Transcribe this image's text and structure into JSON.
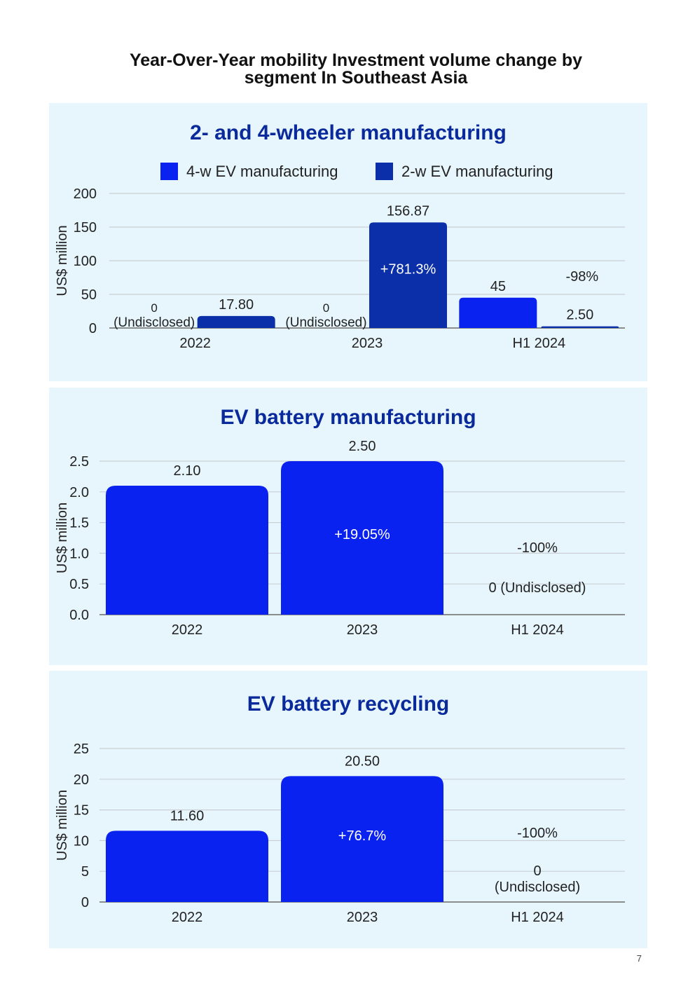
{
  "page": {
    "title_line1": "Year-Over-Year mobility Investment volume change by",
    "title_line2": "segment In Southeast Asia",
    "page_number": "7"
  },
  "colors": {
    "panel_bg": "#e7f6fd",
    "bar_bright": "#0a22f0",
    "bar_dark": "#0a2fa8",
    "title_blue": "#0a2a9c",
    "gridline": "#c9cfd4",
    "axis": "#6a6a6a"
  },
  "chart_data": [
    {
      "type": "bar",
      "title": "2- and 4-wheeler manufacturing",
      "ylabel": "US$ million",
      "xlabel": "",
      "ylim": [
        0,
        200
      ],
      "yticks": [
        "0",
        "50",
        "100",
        "150",
        "200"
      ],
      "categories": [
        "2022",
        "2023",
        "H1 2024"
      ],
      "legend_position": "top",
      "series": [
        {
          "name": "4-w EV manufacturing",
          "color": "#0a22f0",
          "values": [
            0,
            0,
            45
          ],
          "labels": [
            "0",
            "0",
            "45"
          ],
          "sublabels": [
            "(Undisclosed)",
            "(Undisclosed)",
            ""
          ]
        },
        {
          "name": "2-w EV manufacturing",
          "color": "#0a2fa8",
          "values": [
            17.8,
            156.87,
            2.5
          ],
          "labels": [
            "17.80",
            "156.87",
            "2.50"
          ]
        }
      ],
      "annotations": [
        {
          "text": "+781.3%",
          "category": "2023",
          "series": 1,
          "placement": "inside"
        },
        {
          "text": "-98%",
          "category": "H1 2024",
          "series": 1,
          "placement": "above"
        }
      ]
    },
    {
      "type": "bar",
      "title": "EV battery manufacturing",
      "ylabel": "US$ million",
      "xlabel": "",
      "ylim": [
        0,
        2.5
      ],
      "yticks": [
        "0.0",
        "0.5",
        "1.0",
        "1.5",
        "2.0",
        "2.5"
      ],
      "categories": [
        "2022",
        "2023",
        "H1 2024"
      ],
      "series": [
        {
          "name": "EV battery manufacturing",
          "color": "#0a22f0",
          "values": [
            2.1,
            2.5,
            0
          ],
          "labels": [
            "2.10",
            "2.50",
            "0 (Undisclosed)"
          ]
        }
      ],
      "annotations": [
        {
          "text": "+19.05%",
          "category": "2023",
          "placement": "inside"
        },
        {
          "text": "-100%",
          "category": "H1 2024",
          "placement": "above"
        }
      ]
    },
    {
      "type": "bar",
      "title": "EV battery recycling",
      "ylabel": "US$ million",
      "xlabel": "",
      "ylim": [
        0,
        25
      ],
      "yticks": [
        "0",
        "5",
        "10",
        "15",
        "20",
        "25"
      ],
      "categories": [
        "2022",
        "2023",
        "H1 2024"
      ],
      "series": [
        {
          "name": "EV battery recycling",
          "color": "#0a22f0",
          "values": [
            11.6,
            20.5,
            0
          ],
          "labels": [
            "11.60",
            "20.50",
            "0"
          ],
          "sublabels": [
            "",
            "",
            "(Undisclosed)"
          ]
        }
      ],
      "annotations": [
        {
          "text": "+76.7%",
          "category": "2023",
          "placement": "inside"
        },
        {
          "text": "-100%",
          "category": "H1 2024",
          "placement": "above"
        }
      ]
    }
  ]
}
